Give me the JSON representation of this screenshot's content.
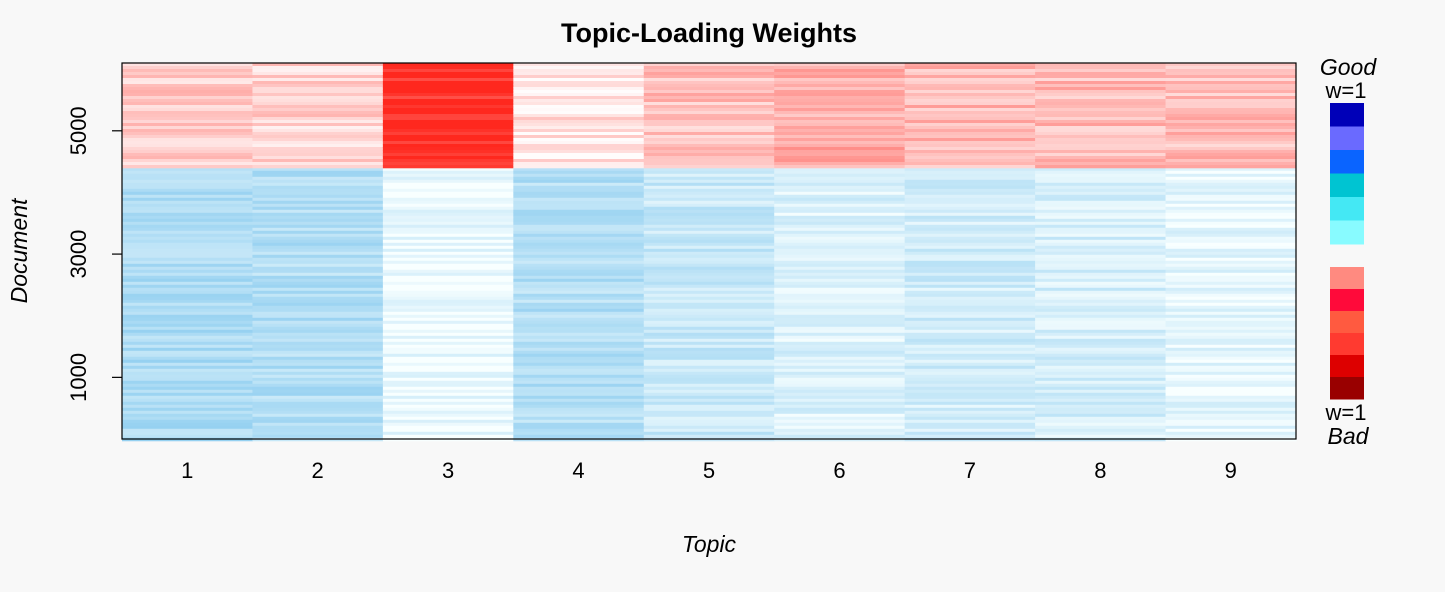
{
  "chart_data": {
    "type": "heatmap",
    "title": "Topic-Loading Weights",
    "xlabel": "Topic",
    "ylabel": "Document",
    "x_categories": [
      "1",
      "2",
      "3",
      "4",
      "5",
      "6",
      "7",
      "8",
      "9"
    ],
    "y_ticks": [
      1000,
      3000,
      5000
    ],
    "ylim": [
      0,
      6100
    ],
    "good_documents_range": [
      0,
      4400
    ],
    "bad_documents_range": [
      4400,
      6100
    ],
    "good_intensity_by_topic": [
      0.55,
      0.5,
      0.08,
      0.5,
      0.35,
      0.2,
      0.28,
      0.25,
      0.12
    ],
    "bad_intensity_by_topic": [
      0.22,
      0.2,
      0.95,
      0.12,
      0.28,
      0.38,
      0.32,
      0.3,
      0.3
    ],
    "grid": false,
    "legend": {
      "placement": "right",
      "top_label": "Good",
      "top_weight": "w=1",
      "bottom_weight": "w=1",
      "bottom_label": "Bad",
      "good_colors": [
        "#0000b8",
        "#6a6aff",
        "#0a64ff",
        "#00c4d2",
        "#44e8f4",
        "#88fbff"
      ],
      "bad_colors": [
        "#ff8a80",
        "#ff0a3a",
        "#ff5a40",
        "#ff3a30",
        "#dd0000",
        "#990000"
      ]
    }
  }
}
